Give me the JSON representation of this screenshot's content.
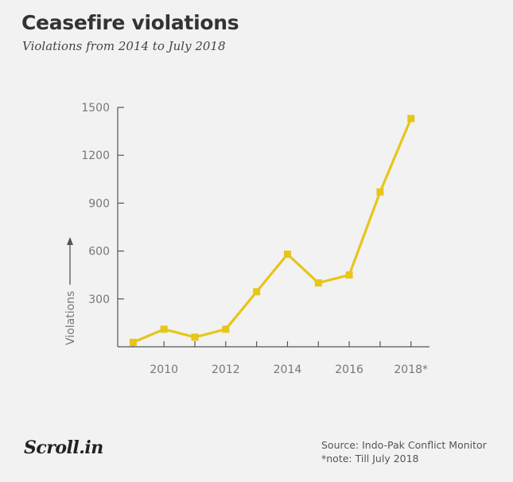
{
  "title": "Ceasefire violations",
  "subtitle": "Violations from 2014 to July 2018",
  "chart_data": {
    "type": "line",
    "x": [
      2009,
      2010,
      2011,
      2012,
      2013,
      2014,
      2015,
      2016,
      2017,
      2018
    ],
    "series": [
      {
        "values": [
          28,
          110,
          60,
          110,
          345,
          580,
          400,
          450,
          970,
          1430
        ]
      }
    ],
    "xticks": [
      2010,
      2012,
      2014,
      2016,
      2018
    ],
    "xtick_labels": [
      "2010",
      "2012",
      "2014",
      "2016",
      "2018*"
    ],
    "yticks": [
      300,
      600,
      900,
      1200,
      1500
    ],
    "ytick_labels": [
      "300",
      "600",
      "900",
      "1200",
      "1500"
    ],
    "ylabel": "Violations",
    "xlim": [
      2008.5,
      2018.6
    ],
    "ylim": [
      0,
      1500
    ],
    "grid": false,
    "line_color": "#e6c619",
    "axis_color": "#555555"
  },
  "footer": {
    "logo_text": "Scroll.in",
    "source": "Source: Indo-Pak Conflict Monitor",
    "note": "*note: Till July 2018"
  }
}
